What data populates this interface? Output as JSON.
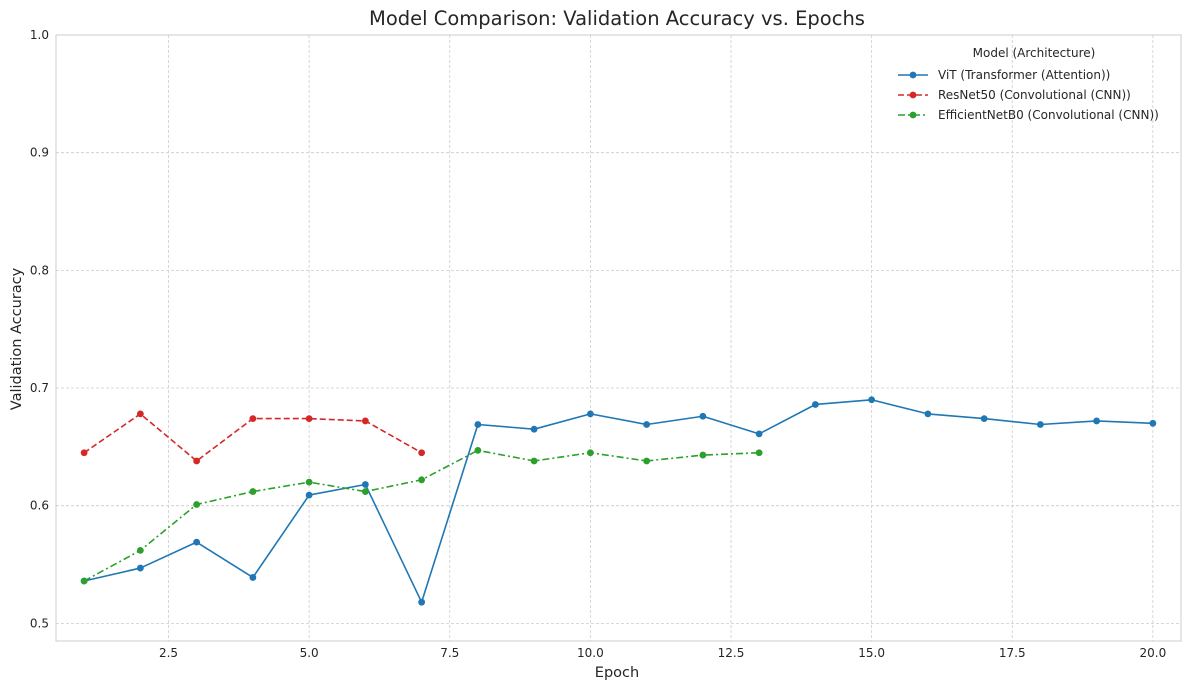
{
  "chart_data": {
    "type": "line",
    "title": "Model Comparison: Validation Accuracy vs. Epochs",
    "xlabel": "Epoch",
    "ylabel": "Validation Accuracy",
    "xlim": [
      0.5,
      20.5
    ],
    "ylim": [
      0.485,
      1.0
    ],
    "xticks": [
      2.5,
      5.0,
      7.5,
      10.0,
      12.5,
      15.0,
      17.5,
      20.0
    ],
    "xtick_labels": [
      "2.5",
      "5.0",
      "7.5",
      "10.0",
      "12.5",
      "15.0",
      "17.5",
      "20.0"
    ],
    "yticks": [
      0.5,
      0.6,
      0.7,
      0.8,
      0.9,
      1.0
    ],
    "ytick_labels": [
      "0.5",
      "0.6",
      "0.7",
      "0.8",
      "0.9",
      "1.0"
    ],
    "grid": true,
    "legend": {
      "title": "Model (Architecture)",
      "placement": "top-right"
    },
    "series": [
      {
        "name": "ViT (Transformer (Attention))",
        "color": "#1f77b4",
        "line_style": "solid",
        "x": [
          1,
          2,
          3,
          4,
          5,
          6,
          7,
          8,
          9,
          10,
          11,
          12,
          13,
          14,
          15,
          16,
          17,
          18,
          19,
          20
        ],
        "values": [
          0.536,
          0.547,
          0.569,
          0.539,
          0.609,
          0.618,
          0.518,
          0.669,
          0.665,
          0.678,
          0.669,
          0.676,
          0.661,
          0.686,
          0.69,
          0.678,
          0.674,
          0.669,
          0.672,
          0.67
        ]
      },
      {
        "name": "ResNet50 (Convolutional (CNN))",
        "color": "#d62728",
        "line_style": "dashed",
        "x": [
          1,
          2,
          3,
          4,
          5,
          6,
          7
        ],
        "values": [
          0.645,
          0.678,
          0.638,
          0.674,
          0.674,
          0.672,
          0.645
        ]
      },
      {
        "name": "EfficientNetB0 (Convolutional (CNN))",
        "color": "#2ca02c",
        "line_style": "dashdot",
        "x": [
          1,
          2,
          3,
          4,
          5,
          6,
          7,
          8,
          9,
          10,
          11,
          12,
          13
        ],
        "values": [
          0.536,
          0.562,
          0.601,
          0.612,
          0.62,
          0.612,
          0.622,
          0.647,
          0.638,
          0.645,
          0.638,
          0.643,
          0.645
        ]
      }
    ]
  }
}
